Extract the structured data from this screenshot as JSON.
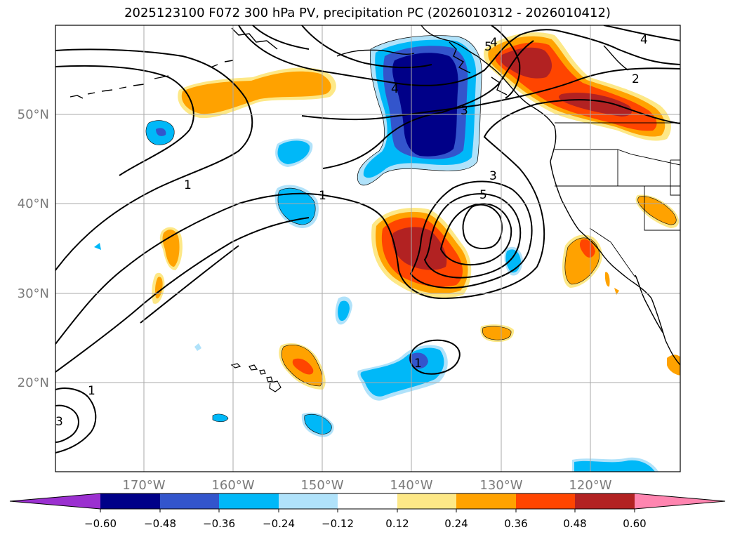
{
  "title": "2025123100 F072 300 hPa PV, precipitation PC (2026010312 - 2026010412)",
  "map": {
    "lat_labels": [
      "50°N",
      "40°N",
      "30°N",
      "20°N"
    ],
    "lon_labels": [
      "170°W",
      "160°W",
      "150°W",
      "140°W",
      "130°W",
      "120°W"
    ],
    "contour_labels": [
      "4",
      "5",
      "4",
      "2",
      "4",
      "3",
      "3",
      "5",
      "1",
      "1",
      "1",
      "1",
      "3"
    ]
  },
  "colorbar": {
    "tick_labels": [
      "−0.60",
      "−0.48",
      "−0.36",
      "−0.24",
      "−0.12",
      "0.12",
      "0.24",
      "0.36",
      "0.48",
      "0.60"
    ],
    "colors": [
      "#9b30d0",
      "#000088",
      "#3355cc",
      "#00b8f8",
      "#b0e2fa",
      "#ffffff",
      "#fde887",
      "#ffa200",
      "#ff4500",
      "#b22222",
      "#ff85b0"
    ]
  },
  "colors": {
    "deep_blue": "#000088",
    "blue": "#3355cc",
    "cyan": "#00b8f8",
    "light_cyan": "#b0e2fa",
    "light_yellow": "#fde887",
    "orange": "#ffa200",
    "red_orange": "#ff4500",
    "dark_red": "#b22222"
  }
}
